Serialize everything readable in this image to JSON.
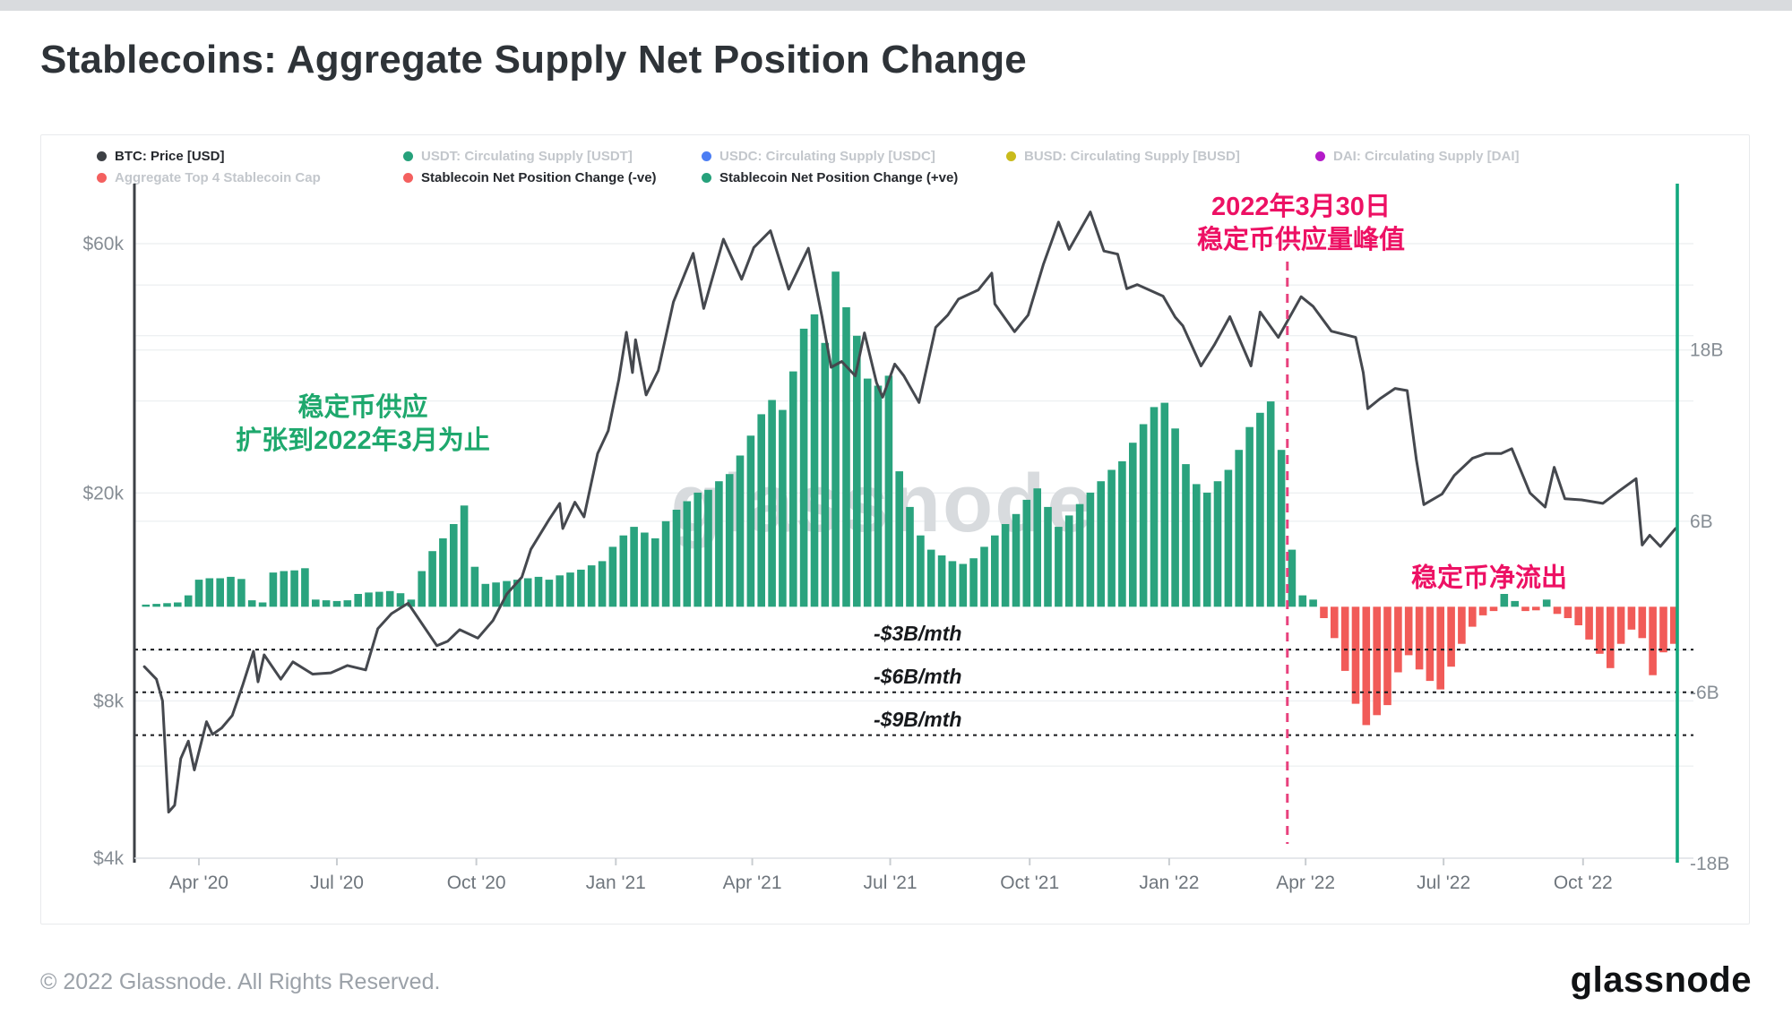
{
  "page": {
    "title": "Stablecoins: Aggregate Supply Net Position Change",
    "footer_copyright": "© 2022 Glassnode. All Rights Reserved.",
    "brand_logo": "glassnode",
    "watermark": "glassnode"
  },
  "legend": {
    "items": [
      {
        "label": "BTC: Price [USD]",
        "color": "#3d4045",
        "active": true,
        "row": 1
      },
      {
        "label": "USDT: Circulating Supply [USDT]",
        "color": "#26a17b",
        "active": false,
        "row": 1
      },
      {
        "label": "USDC: Circulating Supply [USDC]",
        "color": "#4c7ef3",
        "active": false,
        "row": 1
      },
      {
        "label": "BUSD: Circulating Supply [BUSD]",
        "color": "#c9bb1c",
        "active": false,
        "row": 1
      },
      {
        "label": "DAI: Circulating Supply [DAI]",
        "color": "#b41bc9",
        "active": false,
        "row": 1
      },
      {
        "label": "Aggregate Top 4 Stablecoin Cap",
        "color": "#f4605f",
        "active": false,
        "row": 2
      },
      {
        "label": "Stablecoin Net Position Change (-ve)",
        "color": "#f4605f",
        "active": true,
        "row": 2
      },
      {
        "label": "Stablecoin Net Position Change (+ve)",
        "color": "#26a17b",
        "active": true,
        "row": 2
      }
    ]
  },
  "annotations": {
    "peak_line1": "2022年3月30日",
    "peak_line2": "稳定币供应量峰值",
    "expansion_line1": "稳定币供应",
    "expansion_line2": "扩张到2022年3月为止",
    "outflow": "稳定币净流出",
    "rate_labels": [
      "-$3B/mth",
      "-$6B/mth",
      "-$9B/mth"
    ]
  },
  "chart_data": {
    "type": "mixed: bar (stablecoin net position change, right linear axis, $B/month) + line (BTC price, left log axis)",
    "title": "Stablecoins: Aggregate Supply Net Position Change",
    "x_axis": {
      "range": [
        "2020-02-22",
        "2022-12-02"
      ],
      "ticks": [
        {
          "label": "Apr '20",
          "date": "2020-04-01"
        },
        {
          "label": "Jul '20",
          "date": "2020-07-01"
        },
        {
          "label": "Oct '20",
          "date": "2020-10-01"
        },
        {
          "label": "Jan '21",
          "date": "2021-01-01"
        },
        {
          "label": "Apr '21",
          "date": "2021-04-01"
        },
        {
          "label": "Jul '21",
          "date": "2021-07-01"
        },
        {
          "label": "Oct '21",
          "date": "2021-10-01"
        },
        {
          "label": "Jan '22",
          "date": "2022-01-01"
        },
        {
          "label": "Apr '22",
          "date": "2022-04-01"
        },
        {
          "label": "Jul '22",
          "date": "2022-07-01"
        },
        {
          "label": "Oct '22",
          "date": "2022-10-01"
        }
      ]
    },
    "left_axis": {
      "scale": "log",
      "unit": "USD",
      "ticks": [
        {
          "label": "$60k",
          "value": 60000
        },
        {
          "label": "$20k",
          "value": 20000
        },
        {
          "label": "$8k",
          "value": 8000
        },
        {
          "label": "$4k",
          "value": 4000
        }
      ],
      "gridline_values": [
        60000,
        50000,
        40000,
        30000,
        20000,
        10000,
        8000,
        6000,
        4000
      ]
    },
    "right_axis": {
      "scale": "linear",
      "unit": "USD billions per month",
      "ticks": [
        {
          "label": "18B",
          "value": 18
        },
        {
          "label": "6B",
          "value": 6
        },
        {
          "label": "-6B",
          "value": -6
        },
        {
          "label": "-18B",
          "value": -18
        }
      ],
      "gridline_values": [
        18,
        6,
        -6
      ]
    },
    "reference_lines": {
      "horizontal_dashed_values": [
        -3,
        -6,
        -9
      ],
      "vertical_dashed_date": "2022-03-30"
    },
    "btc_price": {
      "name": "BTC: Price [USD]",
      "points": [
        [
          "2020-02-25",
          9300
        ],
        [
          "2020-03-04",
          8800
        ],
        [
          "2020-03-08",
          8000
        ],
        [
          "2020-03-12",
          4900
        ],
        [
          "2020-03-16",
          5050
        ],
        [
          "2020-03-20",
          6200
        ],
        [
          "2020-03-25",
          6700
        ],
        [
          "2020-03-29",
          5900
        ],
        [
          "2020-04-06",
          7300
        ],
        [
          "2020-04-10",
          6900
        ],
        [
          "2020-04-16",
          7100
        ],
        [
          "2020-04-23",
          7500
        ],
        [
          "2020-04-30",
          8600
        ],
        [
          "2020-05-07",
          9950
        ],
        [
          "2020-05-10",
          8700
        ],
        [
          "2020-05-14",
          9800
        ],
        [
          "2020-05-25",
          8800
        ],
        [
          "2020-06-02",
          9500
        ],
        [
          "2020-06-15",
          9000
        ],
        [
          "2020-06-27",
          9050
        ],
        [
          "2020-07-08",
          9350
        ],
        [
          "2020-07-20",
          9170
        ],
        [
          "2020-07-28",
          11000
        ],
        [
          "2020-08-06",
          11750
        ],
        [
          "2020-08-17",
          12300
        ],
        [
          "2020-09-05",
          10200
        ],
        [
          "2020-09-12",
          10400
        ],
        [
          "2020-09-20",
          10950
        ],
        [
          "2020-10-02",
          10550
        ],
        [
          "2020-10-12",
          11400
        ],
        [
          "2020-10-21",
          12800
        ],
        [
          "2020-10-31",
          13800
        ],
        [
          "2020-11-06",
          15600
        ],
        [
          "2020-11-18",
          17800
        ],
        [
          "2020-11-25",
          19100
        ],
        [
          "2020-11-27",
          17100
        ],
        [
          "2020-12-05",
          19200
        ],
        [
          "2020-12-11",
          18000
        ],
        [
          "2020-12-20",
          23800
        ],
        [
          "2020-12-27",
          26300
        ],
        [
          "2021-01-03",
          33000
        ],
        [
          "2021-01-08",
          40600
        ],
        [
          "2021-01-12",
          34000
        ],
        [
          "2021-01-14",
          39300
        ],
        [
          "2021-01-21",
          30800
        ],
        [
          "2021-01-29",
          34300
        ],
        [
          "2021-02-08",
          46400
        ],
        [
          "2021-02-21",
          57500
        ],
        [
          "2021-02-28",
          45100
        ],
        [
          "2021-03-13",
          61200
        ],
        [
          "2021-03-25",
          51300
        ],
        [
          "2021-04-02",
          59000
        ],
        [
          "2021-04-13",
          63500
        ],
        [
          "2021-04-25",
          49100
        ],
        [
          "2021-05-08",
          58800
        ],
        [
          "2021-05-17",
          43500
        ],
        [
          "2021-05-23",
          34800
        ],
        [
          "2021-05-30",
          35700
        ],
        [
          "2021-06-08",
          33500
        ],
        [
          "2021-06-14",
          40500
        ],
        [
          "2021-06-22",
          32500
        ],
        [
          "2021-06-26",
          30500
        ],
        [
          "2021-07-04",
          35300
        ],
        [
          "2021-07-10",
          33500
        ],
        [
          "2021-07-20",
          29800
        ],
        [
          "2021-07-31",
          41500
        ],
        [
          "2021-08-08",
          43800
        ],
        [
          "2021-08-15",
          47000
        ],
        [
          "2021-08-28",
          48900
        ],
        [
          "2021-09-06",
          52700
        ],
        [
          "2021-09-08",
          46000
        ],
        [
          "2021-09-21",
          40700
        ],
        [
          "2021-09-30",
          43800
        ],
        [
          "2021-10-10",
          54700
        ],
        [
          "2021-10-20",
          66000
        ],
        [
          "2021-10-27",
          58500
        ],
        [
          "2021-11-10",
          69000
        ],
        [
          "2021-11-19",
          58100
        ],
        [
          "2021-11-28",
          57300
        ],
        [
          "2021-12-04",
          49200
        ],
        [
          "2021-12-11",
          50100
        ],
        [
          "2021-12-28",
          47600
        ],
        [
          "2022-01-05",
          43400
        ],
        [
          "2022-01-10",
          41800
        ],
        [
          "2022-01-22",
          35000
        ],
        [
          "2022-01-31",
          38500
        ],
        [
          "2022-02-10",
          43500
        ],
        [
          "2022-02-24",
          35000
        ],
        [
          "2022-03-02",
          44400
        ],
        [
          "2022-03-14",
          39700
        ],
        [
          "2022-03-29",
          47500
        ],
        [
          "2022-04-06",
          45500
        ],
        [
          "2022-04-18",
          40800
        ],
        [
          "2022-05-04",
          39700
        ],
        [
          "2022-05-09",
          34000
        ],
        [
          "2022-05-12",
          29000
        ],
        [
          "2022-05-20",
          30300
        ],
        [
          "2022-05-30",
          31700
        ],
        [
          "2022-06-07",
          31400
        ],
        [
          "2022-06-13",
          23200
        ],
        [
          "2022-06-18",
          19000
        ],
        [
          "2022-06-30",
          19900
        ],
        [
          "2022-07-08",
          21600
        ],
        [
          "2022-07-20",
          23300
        ],
        [
          "2022-07-29",
          23800
        ],
        [
          "2022-08-08",
          23800
        ],
        [
          "2022-08-15",
          24300
        ],
        [
          "2022-08-27",
          20000
        ],
        [
          "2022-09-06",
          18800
        ],
        [
          "2022-09-12",
          22400
        ],
        [
          "2022-09-19",
          19500
        ],
        [
          "2022-09-30",
          19400
        ],
        [
          "2022-10-14",
          19100
        ],
        [
          "2022-10-25",
          20200
        ],
        [
          "2022-11-05",
          21300
        ],
        [
          "2022-11-09",
          15900
        ],
        [
          "2022-11-14",
          16600
        ],
        [
          "2022-11-21",
          15800
        ],
        [
          "2022-12-01",
          17100
        ]
      ]
    },
    "net_position_change": {
      "name": "Stablecoin Net Position Change",
      "unit": "USD billions per month",
      "positive_color": "#2aa37e",
      "negative_color": "#f15b58",
      "start_date": "2020-02-26",
      "interval_days": 7,
      "values": [
        0.15,
        0.2,
        0.25,
        0.3,
        0.8,
        1.9,
        2.0,
        2.0,
        2.1,
        1.95,
        0.45,
        0.3,
        2.4,
        2.5,
        2.55,
        2.7,
        0.5,
        0.45,
        0.4,
        0.45,
        0.9,
        1.0,
        1.05,
        1.1,
        0.95,
        0.5,
        2.5,
        3.9,
        4.8,
        5.8,
        7.1,
        2.8,
        1.6,
        1.7,
        1.8,
        1.9,
        2.0,
        2.1,
        1.9,
        2.2,
        2.4,
        2.6,
        2.9,
        3.2,
        4.2,
        5.0,
        5.6,
        5.2,
        4.8,
        6.0,
        6.8,
        7.4,
        8.0,
        8.2,
        8.8,
        9.3,
        10.6,
        12.0,
        13.5,
        14.5,
        13.8,
        16.5,
        19.5,
        20.5,
        18.5,
        23.5,
        21.0,
        19.0,
        16.0,
        15.5,
        16.2,
        9.5,
        7.0,
        5.0,
        4.0,
        3.6,
        3.2,
        3.0,
        3.4,
        4.2,
        5.0,
        5.8,
        6.5,
        7.5,
        8.3,
        7.0,
        5.6,
        6.4,
        7.2,
        8.0,
        8.8,
        9.6,
        10.2,
        11.5,
        12.8,
        14.0,
        14.3,
        12.5,
        10.0,
        8.6,
        8.0,
        8.8,
        9.6,
        11.0,
        12.6,
        13.6,
        14.4,
        11.0,
        4.0,
        0.8,
        0.5,
        -0.8,
        -2.2,
        -4.5,
        -6.8,
        -8.3,
        -7.6,
        -6.9,
        -4.6,
        -3.4,
        -4.4,
        -5.2,
        -5.8,
        -4.2,
        -2.6,
        -1.4,
        -0.6,
        -0.3,
        0.9,
        0.4,
        -0.3,
        -0.25,
        0.5,
        -0.5,
        -0.8,
        -1.3,
        -2.3,
        -3.3,
        -4.3,
        -2.6,
        -1.6,
        -2.2,
        -4.8,
        -3.2,
        -2.6
      ]
    },
    "colors": {
      "btc_line": "#45484e",
      "positive_bar": "#2aa37e",
      "negative_bar": "#f15b58",
      "annotation_pink": "#ed1164",
      "annotation_green": "#1ea86d",
      "vertical_dashed_line": "#e8417d",
      "right_edge_line": "#12a97e",
      "gridline": "#eef0f2",
      "watermark": "#d8dbde"
    }
  }
}
